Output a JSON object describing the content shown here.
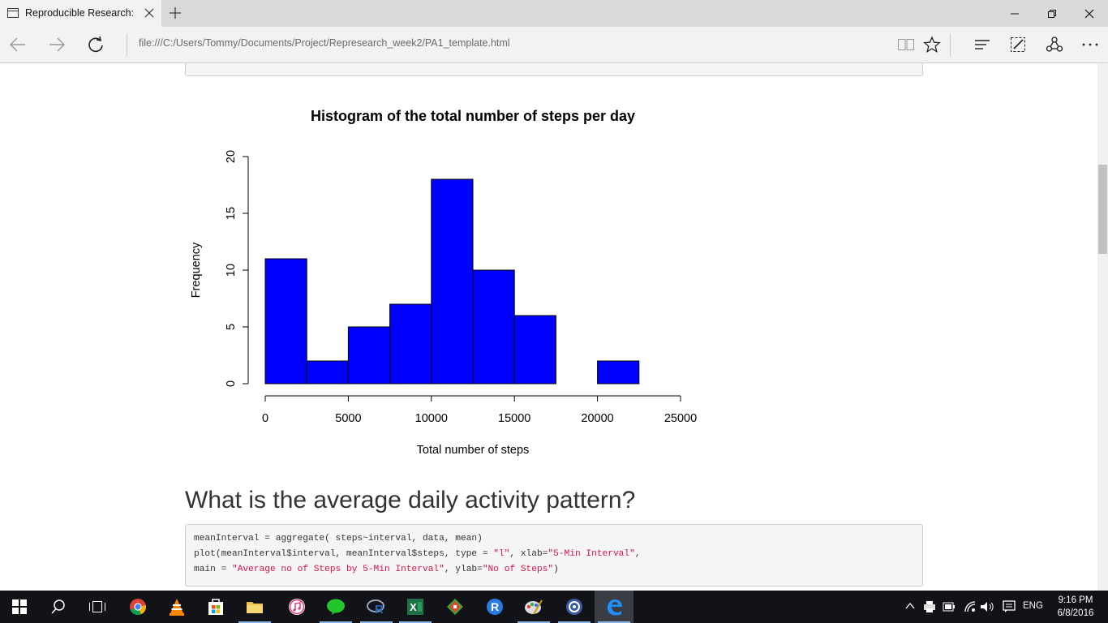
{
  "browser": {
    "tab_title": "Reproducible Research:",
    "address": "file:///C:/Users/Tommy/Documents/Project/Represearch_week2/PA1_template.html"
  },
  "colors": {
    "bar_fill": "#0000ff",
    "string_red": "#dd1144",
    "taskbar_bg": "#111318"
  },
  "chart_data": {
    "type": "bar",
    "title": "Histogram of the total number of steps per day",
    "xlabel": "Total number of steps",
    "ylabel": "Frequency",
    "bins": [
      [
        0,
        2500
      ],
      [
        2500,
        5000
      ],
      [
        5000,
        7500
      ],
      [
        7500,
        10000
      ],
      [
        10000,
        12500
      ],
      [
        12500,
        15000
      ],
      [
        15000,
        17500
      ],
      [
        17500,
        20000
      ],
      [
        20000,
        22500
      ],
      [
        22500,
        25000
      ]
    ],
    "values": [
      11,
      2,
      5,
      7,
      18,
      10,
      6,
      0,
      2,
      0
    ],
    "xlim": [
      0,
      25000
    ],
    "ylim": [
      0,
      20
    ],
    "x_ticks": [
      "0",
      "5000",
      "10000",
      "15000",
      "20000",
      "25000"
    ],
    "y_ticks": [
      "0",
      "5",
      "10",
      "15",
      "20"
    ],
    "grid": false,
    "legend": "none"
  },
  "section": {
    "heading": "What is the average daily activity pattern?"
  },
  "code": {
    "line1": "meanInterval = aggregate( steps~interval, data, mean)",
    "line2_a": "plot(meanInterval$interval, meanInterval$steps, type = ",
    "line2_s1": "\"l\"",
    "line2_b": ", xlab=",
    "line2_s2": "\"5-Min Interval\"",
    "line2_c": ",",
    "line3_a": "main = ",
    "line3_s1": "\"Average no of Steps by 5-Min Interval\"",
    "line3_b": ", ylab=",
    "line3_s2": "\"No of Steps\"",
    "line3_c": ")"
  },
  "taskbar": {
    "apps": [
      "start-icon",
      "search-icon",
      "task-view-icon",
      "chrome-icon",
      "vlc-icon",
      "store-icon",
      "file-explorer-icon",
      "itunes-icon",
      "line-icon",
      "rstudio-icon",
      "excel-icon",
      "git-icon",
      "r-icon",
      "paint-icon",
      "obs-icon",
      "edge-icon"
    ],
    "language": "ENG",
    "time": "9:16 PM",
    "date": "6/8/2016"
  }
}
